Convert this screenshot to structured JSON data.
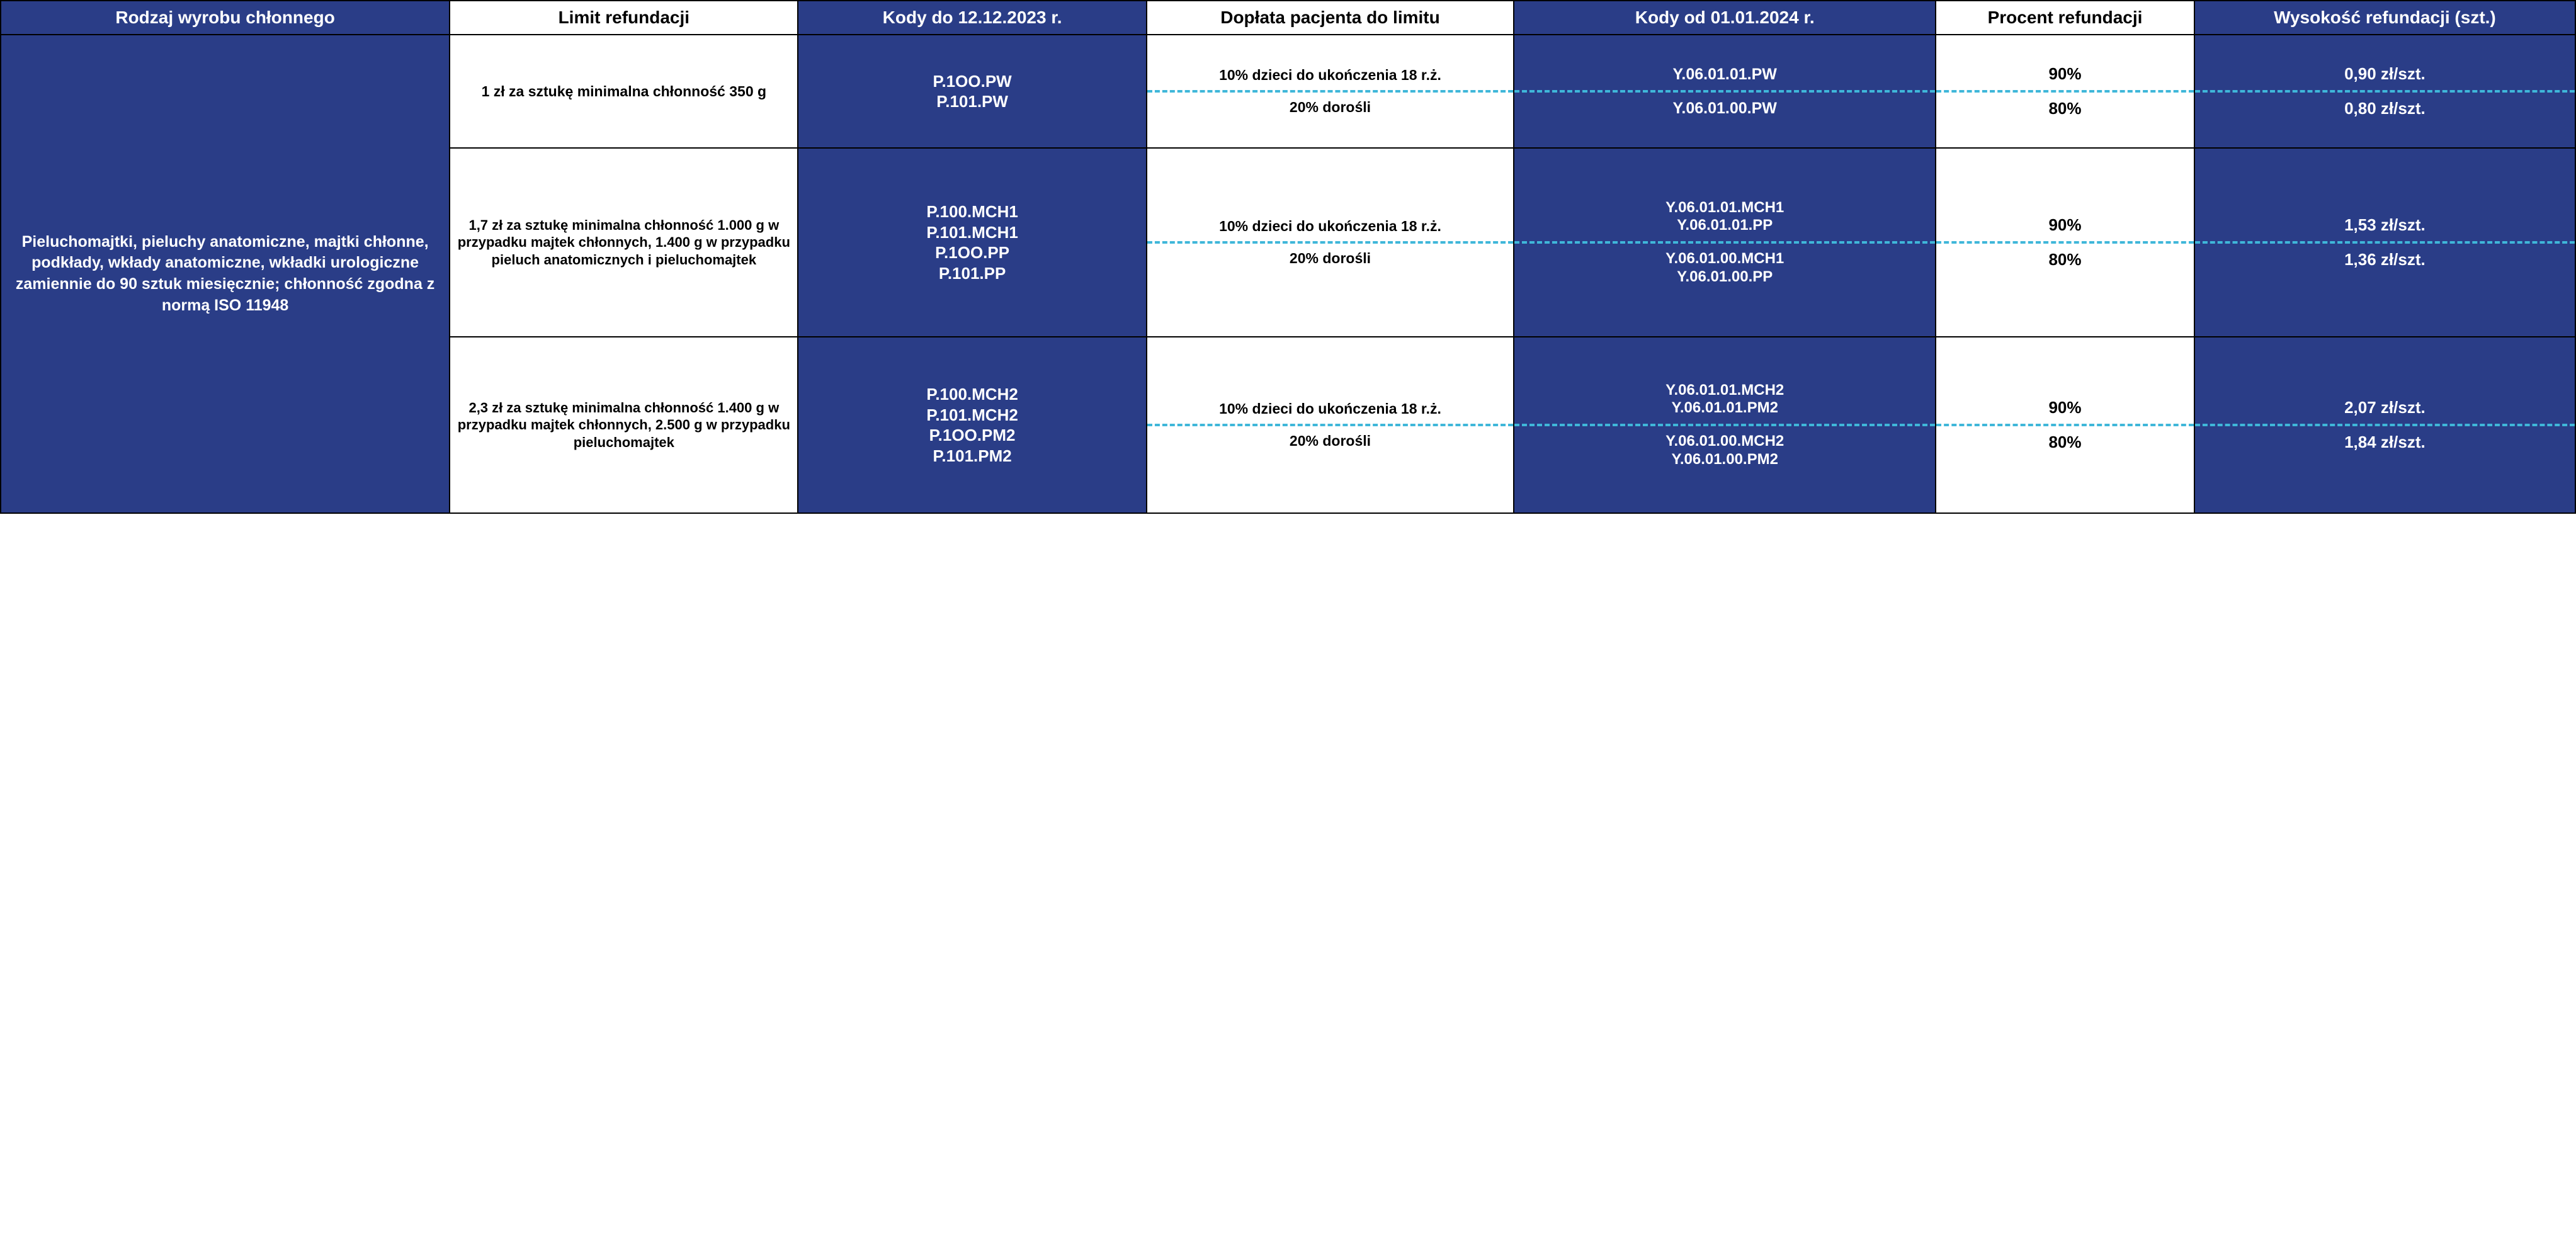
{
  "colors": {
    "blue_bg": "#2a3d87",
    "white_bg": "#ffffff",
    "text_white": "#ffffff",
    "text_black": "#000000",
    "dash_color": "#3fb7d9",
    "border_color": "#000000"
  },
  "typography": {
    "header_fontsize": 28,
    "body_fontsize": 25,
    "font_weight": 700,
    "font_family": "Segoe UI"
  },
  "headers": {
    "col1": "Rodzaj wyrobu chłonnego",
    "col2": "Limit refundacji",
    "col3": "Kody do 12.12.2023 r.",
    "col4": "Dopłata pacjenta do limitu",
    "col5": "Kody od 01.01.2024 r.",
    "col6": "Procent refundacji",
    "col7": "Wysokość refundacji (szt.)"
  },
  "product_type": "Pieluchomajtki, pieluchy anatomiczne, majtki chłonne, podkłady, wkłady anatomiczne, wkładki urologiczne zamiennie do 90 sztuk miesięcznie; chłonność zgodna z normą ISO 11948",
  "rows": [
    {
      "limit": "1 zł za sztukę minimalna chłonność 350 g",
      "codes_old": "P.1OO.PW\nP.101.PW",
      "patient": {
        "a": "10% dzieci do ukończenia 18 r.ż.",
        "b": "20% dorośli"
      },
      "codes_new": {
        "a": "Y.06.01.01.PW",
        "b": "Y.06.01.00.PW"
      },
      "percent": {
        "a": "90%",
        "b": "80%"
      },
      "amount": {
        "a": "0,90 zł/szt.",
        "b": "0,80 zł/szt."
      }
    },
    {
      "limit": "1,7 zł za sztukę minimalna chłonność 1.000 g w przypadku majtek chłonnych, 1.400 g w przypadku pieluch anatomicznych i pieluchomajtek",
      "codes_old": "P.100.MCH1\nP.101.MCH1\nP.1OO.PP\nP.101.PP",
      "patient": {
        "a": "10% dzieci do ukończenia 18 r.ż.",
        "b": "20% dorośli"
      },
      "codes_new": {
        "a": "Y.06.01.01.MCH1\nY.06.01.01.PP",
        "b": "Y.06.01.00.MCH1\nY.06.01.00.PP"
      },
      "percent": {
        "a": "90%",
        "b": "80%"
      },
      "amount": {
        "a": "1,53 zł/szt.",
        "b": "1,36 zł/szt."
      }
    },
    {
      "limit": "2,3 zł za sztukę minimalna chłonność 1.400 g w przypadku majtek chłonnych, 2.500 g w przypadku pieluchomajtek",
      "codes_old": "P.100.MCH2\nP.101.MCH2\nP.1OO.PM2\nP.101.PM2",
      "patient": {
        "a": "10% dzieci do ukończenia 18 r.ż.",
        "b": "20% dorośli"
      },
      "codes_new": {
        "a": "Y.06.01.01.MCH2\nY.06.01.01.PM2",
        "b": "Y.06.01.00.MCH2\nY.06.01.00.PM2"
      },
      "percent": {
        "a": "90%",
        "b": "80%"
      },
      "amount": {
        "a": "2,07 zł/szt.",
        "b": "1,84 zł/szt."
      }
    }
  ]
}
